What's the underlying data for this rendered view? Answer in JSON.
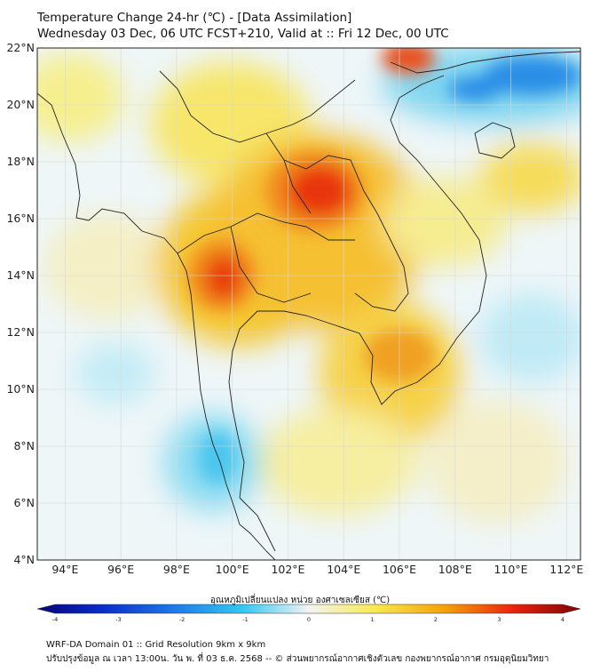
{
  "header": {
    "title_line1": "Temperature Change 24-hr (℃) - [Data Assimilation]",
    "title_line2": "Wednesday 03 Dec, 06 UTC FCST+210, Valid at :: Fri 12 Dec, 00 UTC"
  },
  "map": {
    "lat_range": [
      4,
      22
    ],
    "lon_range": [
      93,
      112.5
    ],
    "lat_ticks": [
      "22°N",
      "20°N",
      "18°N",
      "16°N",
      "14°N",
      "12°N",
      "10°N",
      "8°N",
      "6°N",
      "4°N"
    ],
    "lon_ticks": [
      "94°E",
      "96°E",
      "98°E",
      "100°E",
      "102°E",
      "104°E",
      "106°E",
      "108°E",
      "110°E",
      "112°E"
    ],
    "grid": true,
    "field_variable": "24-hr temperature change (°C)"
  },
  "colorbar": {
    "label": "อุณหภูมิเปลี่ยนแปลง หน่วย องศาเซลเซียส (℃)",
    "min": -4,
    "max": 4,
    "ticks": [
      "-4",
      "-3",
      "-2",
      "-1",
      "0",
      "1",
      "2",
      "3",
      "4"
    ],
    "colors": [
      "#08047a",
      "#0a2dc8",
      "#1e78e8",
      "#36c8f0",
      "#f4f4f4",
      "#f7ea50",
      "#f5a20a",
      "#e8200e",
      "#7a0606"
    ]
  },
  "footer": {
    "line1": "WRF-DA Domain 01 :: Grid Resolution 9km x 9km",
    "line2": "ปรับปรุงข้อมูล ณ เวลา 13:00น. วัน พ. ที่ 03 ธ.ค. 2568 -- © ส่วนพยากรณ์อากาศเชิงตัวเลข กองพยากรณ์อากาศ กรมอุตุนิยมวิทยา"
  }
}
